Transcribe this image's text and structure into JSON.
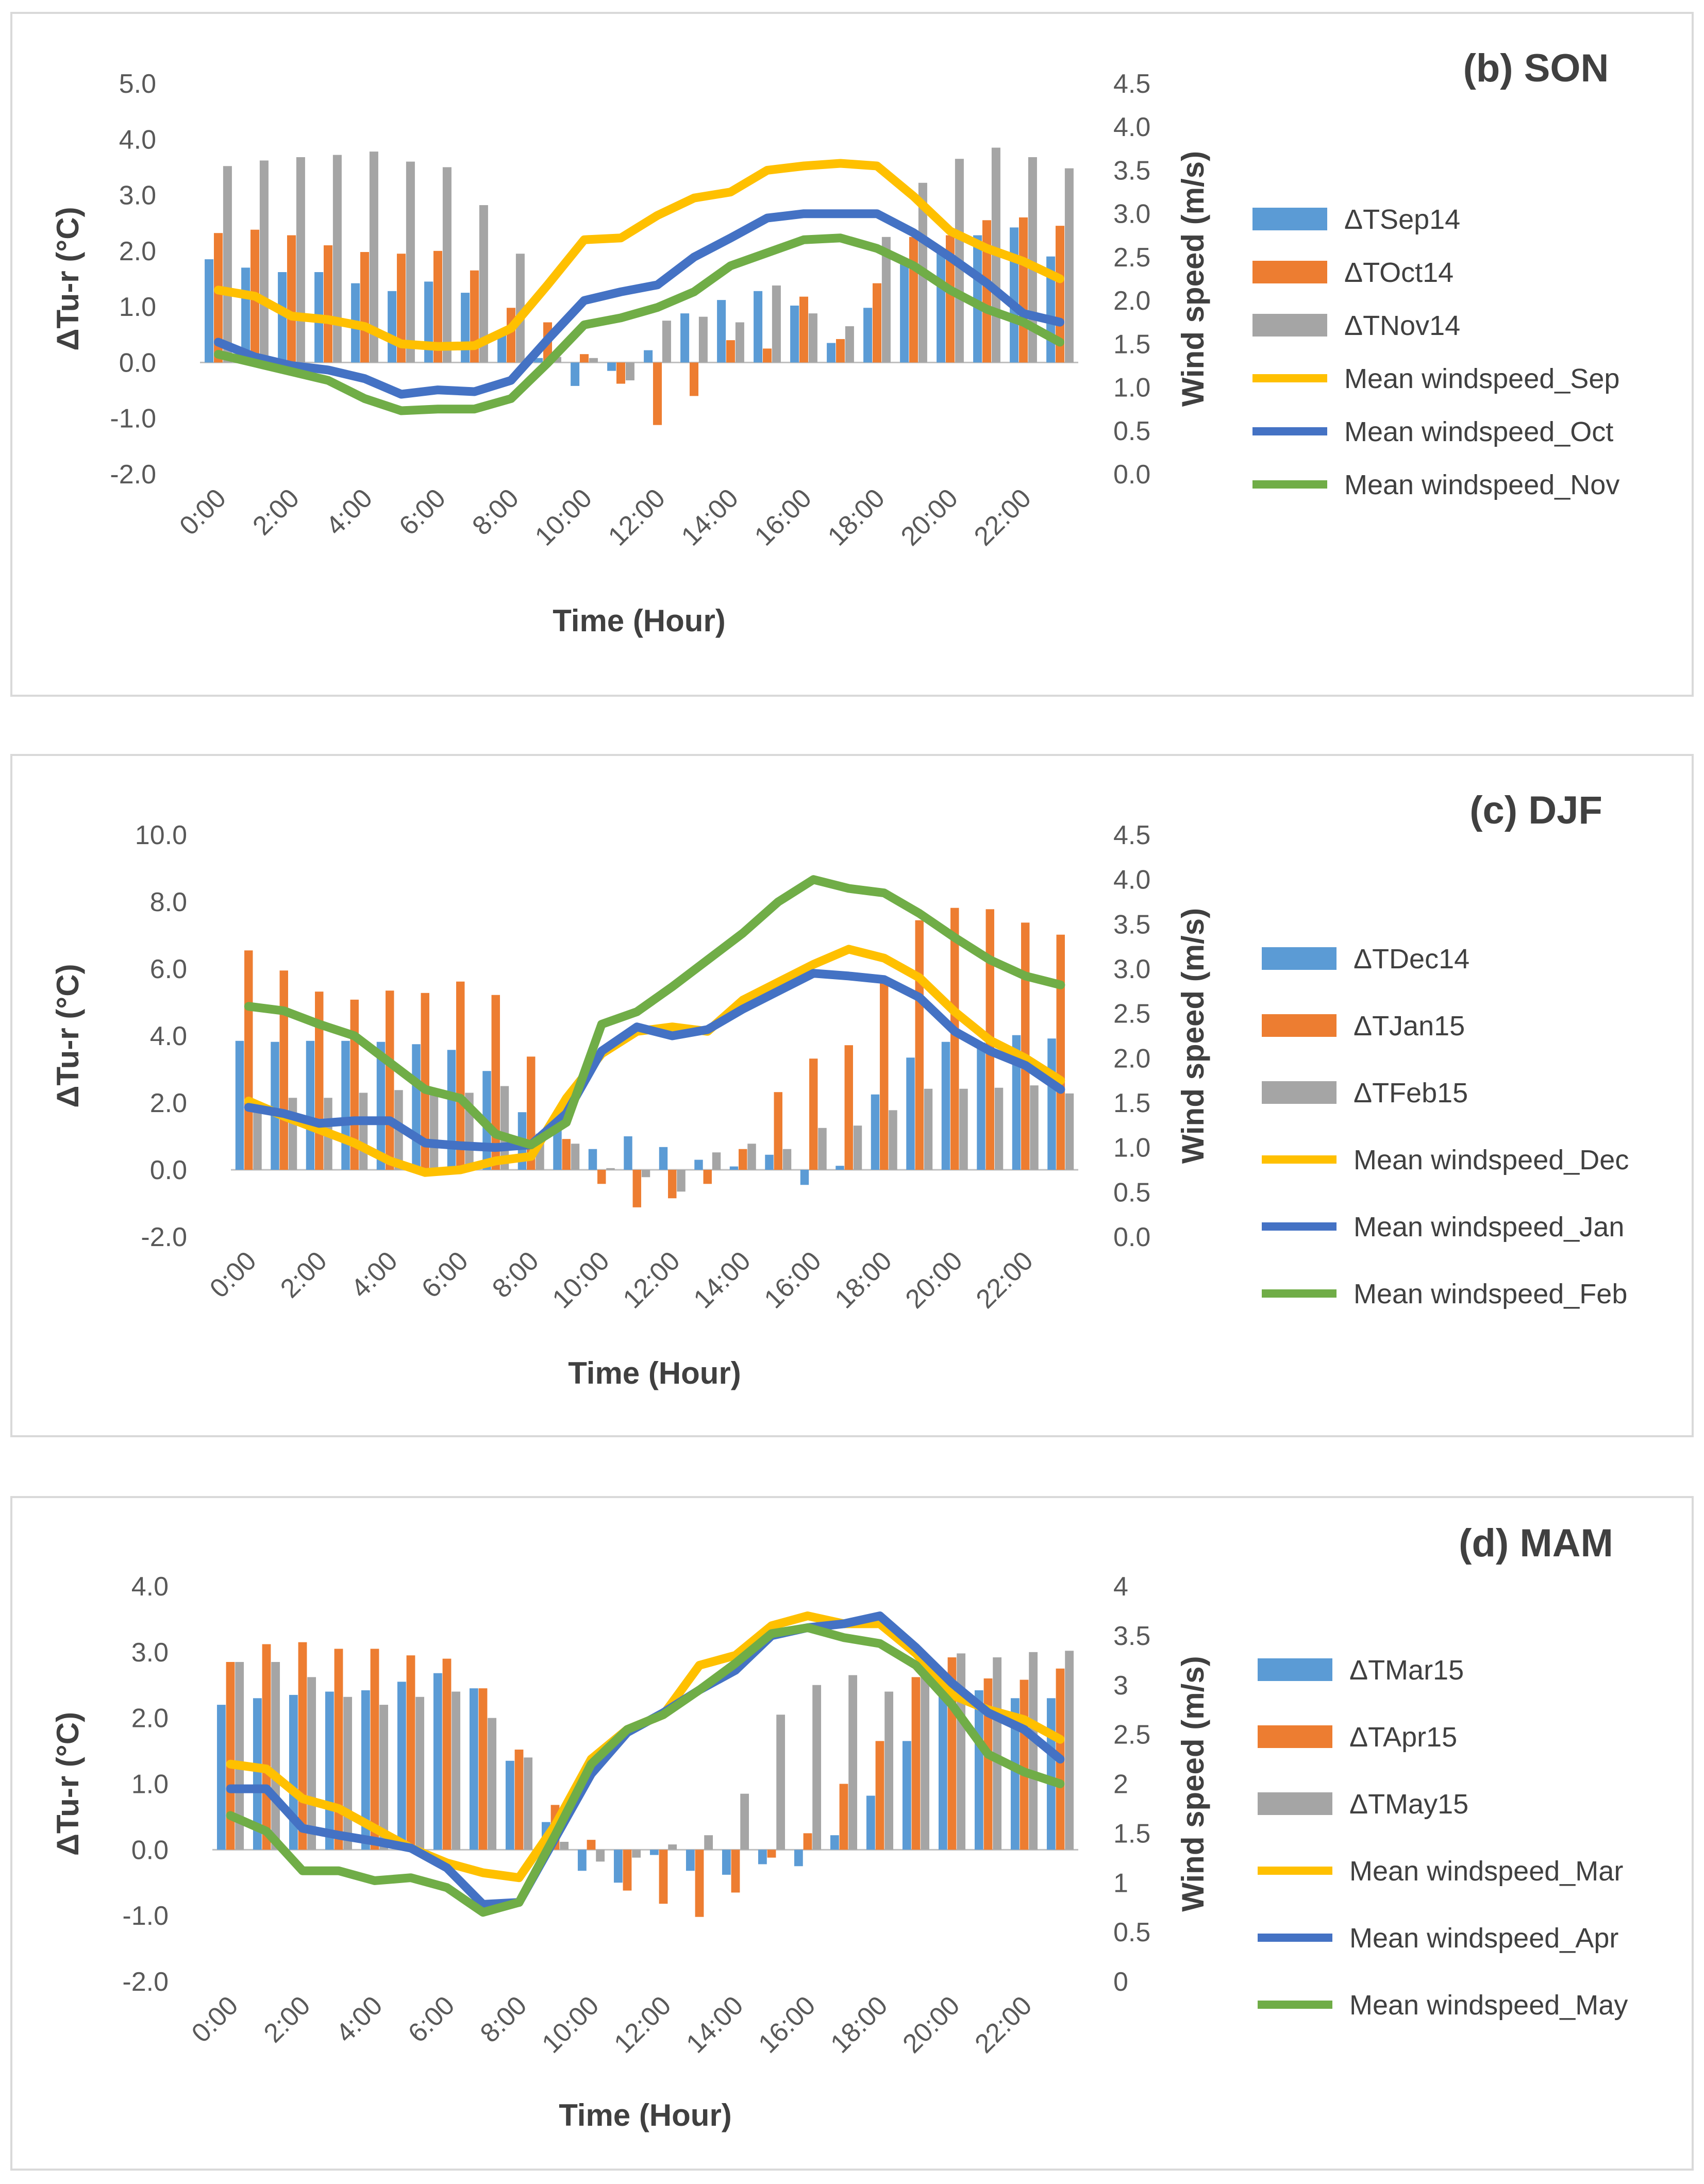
{
  "chart_data": [
    {
      "type": "bar",
      "title": "(b) SON",
      "xlabel": "Time (Hour)",
      "ylabel": "ΔTu-r (°C)",
      "y2label": "Wind speed (m/s)",
      "ylim": [
        -2.0,
        5.0
      ],
      "y2lim": [
        0.0,
        4.5
      ],
      "yticks": [
        "5.0",
        "4.0",
        "3.0",
        "2.0",
        "1.0",
        "0.0",
        "-1.0",
        "-2.0"
      ],
      "y2ticks": [
        "4.5",
        "4.0",
        "3.5",
        "3.0",
        "2.5",
        "2.0",
        "1.5",
        "1.0",
        "0.5",
        "0.0"
      ],
      "x": [
        "0:00",
        "1:00",
        "2:00",
        "3:00",
        "4:00",
        "5:00",
        "6:00",
        "7:00",
        "8:00",
        "9:00",
        "10:00",
        "11:00",
        "12:00",
        "13:00",
        "14:00",
        "15:00",
        "16:00",
        "17:00",
        "18:00",
        "19:00",
        "20:00",
        "21:00",
        "22:00",
        "23:00"
      ],
      "xtick_labels": [
        "0:00",
        "2:00",
        "4:00",
        "6:00",
        "8:00",
        "10:00",
        "12:00",
        "14:00",
        "16:00",
        "18:00",
        "20:00",
        "22:00"
      ],
      "legend_position": "right",
      "bar_series": [
        {
          "name": "ΔTSep14",
          "color": "#5b9bd5",
          "values": [
            1.85,
            1.7,
            1.62,
            1.62,
            1.42,
            1.28,
            1.45,
            1.25,
            0.58,
            0.08,
            -0.42,
            -0.15,
            0.22,
            0.88,
            1.12,
            1.28,
            1.02,
            0.35,
            0.98,
            1.78,
            1.98,
            2.28,
            2.42,
            1.9
          ]
        },
        {
          "name": "ΔTOct14",
          "color": "#ed7d31",
          "values": [
            2.32,
            2.38,
            2.28,
            2.1,
            1.98,
            1.95,
            2.0,
            1.65,
            0.98,
            0.72,
            0.15,
            -0.38,
            -1.12,
            -0.6,
            0.4,
            0.25,
            1.18,
            0.42,
            1.42,
            2.25,
            2.28,
            2.55,
            2.6,
            2.45
          ]
        },
        {
          "name": "ΔTNov14",
          "color": "#a5a5a5",
          "values": [
            3.52,
            3.62,
            3.68,
            3.72,
            3.78,
            3.6,
            3.5,
            2.82,
            1.95,
            0.1,
            0.08,
            -0.32,
            0.75,
            0.82,
            0.72,
            1.38,
            0.88,
            0.65,
            2.25,
            3.22,
            3.65,
            3.85,
            3.68,
            3.48
          ]
        }
      ],
      "line_series": [
        {
          "name": "Mean windspeed_Sep",
          "color": "#ffc000",
          "values": [
            2.12,
            2.05,
            1.82,
            1.78,
            1.7,
            1.5,
            1.47,
            1.48,
            1.68,
            2.18,
            2.7,
            2.72,
            2.98,
            3.18,
            3.25,
            3.5,
            3.55,
            3.58,
            3.55,
            3.2,
            2.8,
            2.6,
            2.45,
            2.25
          ]
        },
        {
          "name": "Mean windspeed_Oct",
          "color": "#4472c4",
          "values": [
            1.52,
            1.35,
            1.25,
            1.2,
            1.1,
            0.92,
            0.97,
            0.95,
            1.08,
            1.55,
            2.0,
            2.1,
            2.18,
            2.5,
            2.72,
            2.95,
            3.0,
            3.0,
            3.0,
            2.78,
            2.5,
            2.2,
            1.85,
            1.75
          ]
        },
        {
          "name": "Mean windspeed_Nov",
          "color": "#70ad47",
          "values": [
            1.38,
            1.28,
            1.18,
            1.08,
            0.87,
            0.73,
            0.75,
            0.75,
            0.87,
            1.28,
            1.72,
            1.8,
            1.92,
            2.1,
            2.4,
            2.55,
            2.7,
            2.72,
            2.6,
            2.4,
            2.12,
            1.9,
            1.75,
            1.52
          ]
        }
      ]
    },
    {
      "type": "bar",
      "title": "(c) DJF",
      "xlabel": "Time (Hour)",
      "ylabel": "ΔTu-r (°C)",
      "y2label": "Wind speed (m/s)",
      "ylim": [
        -2.0,
        10.0
      ],
      "y2lim": [
        0.0,
        4.5
      ],
      "yticks": [
        "10.0",
        "8.0",
        "6.0",
        "4.0",
        "2.0",
        "0.0",
        "-2.0"
      ],
      "y2ticks": [
        "4.5",
        "4.0",
        "3.5",
        "3.0",
        "2.5",
        "2.0",
        "1.5",
        "1.0",
        "0.5",
        "0.0"
      ],
      "x": [
        "0:00",
        "1:00",
        "2:00",
        "3:00",
        "4:00",
        "5:00",
        "6:00",
        "7:00",
        "8:00",
        "9:00",
        "10:00",
        "11:00",
        "12:00",
        "13:00",
        "14:00",
        "15:00",
        "16:00",
        "17:00",
        "18:00",
        "19:00",
        "20:00",
        "21:00",
        "22:00",
        "23:00"
      ],
      "xtick_labels": [
        "0:00",
        "2:00",
        "4:00",
        "6:00",
        "8:00",
        "10:00",
        "12:00",
        "14:00",
        "16:00",
        "18:00",
        "20:00",
        "22:00"
      ],
      "legend_position": "right",
      "bar_series": [
        {
          "name": "ΔTDec14",
          "color": "#5b9bd5",
          "values": [
            3.85,
            3.82,
            3.85,
            3.85,
            3.82,
            3.75,
            3.58,
            2.95,
            1.72,
            1.28,
            0.62,
            1.0,
            0.68,
            0.3,
            0.1,
            0.45,
            -0.45,
            0.12,
            2.25,
            3.35,
            3.82,
            3.8,
            4.02,
            3.92
          ]
        },
        {
          "name": "ΔTJan15",
          "color": "#ed7d31",
          "values": [
            6.55,
            5.95,
            5.32,
            5.08,
            5.35,
            5.28,
            5.62,
            5.22,
            3.38,
            0.92,
            -0.42,
            -1.12,
            -0.85,
            -0.42,
            0.62,
            2.32,
            3.32,
            3.72,
            5.62,
            7.45,
            7.82,
            7.78,
            7.38,
            7.02
          ]
        },
        {
          "name": "ΔTFeb15",
          "color": "#a5a5a5",
          "values": [
            2.02,
            2.15,
            2.15,
            2.3,
            2.38,
            2.25,
            2.3,
            2.5,
            1.08,
            0.78,
            0.05,
            -0.22,
            -0.65,
            0.52,
            0.78,
            0.62,
            1.25,
            1.32,
            1.78,
            2.42,
            2.42,
            2.45,
            2.52,
            2.28
          ]
        }
      ],
      "line_series": [
        {
          "name": "Mean windspeed_Dec",
          "color": "#ffc000",
          "values": [
            1.52,
            1.35,
            1.2,
            1.05,
            0.85,
            0.72,
            0.75,
            0.85,
            0.9,
            1.55,
            2.05,
            2.3,
            2.35,
            2.3,
            2.65,
            2.85,
            3.05,
            3.22,
            3.12,
            2.9,
            2.52,
            2.2,
            2.0,
            1.75
          ]
        },
        {
          "name": "Mean windspeed_Jan",
          "color": "#4472c4",
          "values": [
            1.45,
            1.38,
            1.27,
            1.3,
            1.3,
            1.05,
            1.02,
            1.0,
            1.03,
            1.38,
            2.08,
            2.35,
            2.25,
            2.32,
            2.55,
            2.75,
            2.95,
            2.92,
            2.88,
            2.68,
            2.3,
            2.08,
            1.92,
            1.65
          ]
        },
        {
          "name": "Mean windspeed_Feb",
          "color": "#70ad47",
          "values": [
            2.58,
            2.53,
            2.38,
            2.25,
            1.95,
            1.65,
            1.55,
            1.15,
            1.03,
            1.28,
            2.38,
            2.52,
            2.8,
            3.1,
            3.4,
            3.75,
            4.0,
            3.9,
            3.85,
            3.62,
            3.35,
            3.1,
            2.92,
            2.82
          ]
        }
      ]
    },
    {
      "type": "bar",
      "title": "(d) MAM",
      "xlabel": "Time (Hour)",
      "ylabel": "ΔTu-r (°C)",
      "y2label": "Wind speed (m/s)",
      "ylim": [
        -2.0,
        4.0
      ],
      "y2lim": [
        0,
        4
      ],
      "yticks": [
        "4.0",
        "3.0",
        "2.0",
        "1.0",
        "0.0",
        "-1.0",
        "-2.0"
      ],
      "y2ticks": [
        "4",
        "3.5",
        "3",
        "2.5",
        "2",
        "1.5",
        "1",
        "0.5",
        "0"
      ],
      "x": [
        "0:00",
        "1:00",
        "2:00",
        "3:00",
        "4:00",
        "5:00",
        "6:00",
        "7:00",
        "8:00",
        "9:00",
        "10:00",
        "11:00",
        "12:00",
        "13:00",
        "14:00",
        "15:00",
        "16:00",
        "17:00",
        "18:00",
        "19:00",
        "20:00",
        "21:00",
        "22:00",
        "23:00"
      ],
      "xtick_labels": [
        "0:00",
        "2:00",
        "4:00",
        "6:00",
        "8:00",
        "10:00",
        "12:00",
        "14:00",
        "16:00",
        "18:00",
        "20:00",
        "22:00"
      ],
      "legend_position": "right",
      "bar_series": [
        {
          "name": "ΔTMar15",
          "color": "#5b9bd5",
          "values": [
            2.2,
            2.3,
            2.35,
            2.4,
            2.42,
            2.55,
            2.68,
            2.45,
            1.35,
            0.42,
            -0.32,
            -0.5,
            -0.08,
            -0.32,
            -0.38,
            -0.22,
            -0.25,
            0.22,
            0.82,
            1.65,
            2.42,
            2.42,
            2.3,
            2.3
          ]
        },
        {
          "name": "ΔTApr15",
          "color": "#ed7d31",
          "values": [
            2.85,
            3.12,
            3.15,
            3.05,
            3.05,
            2.95,
            2.9,
            2.45,
            1.52,
            0.68,
            0.15,
            -0.62,
            -0.82,
            -1.02,
            -0.65,
            -0.12,
            0.25,
            1.0,
            1.65,
            2.62,
            2.92,
            2.6,
            2.58,
            2.75
          ]
        },
        {
          "name": "ΔTMay15",
          "color": "#a5a5a5",
          "values": [
            2.85,
            2.85,
            2.62,
            2.32,
            2.2,
            2.32,
            2.4,
            2.0,
            1.4,
            0.12,
            -0.18,
            -0.12,
            0.08,
            0.22,
            0.85,
            2.05,
            2.5,
            2.65,
            2.4,
            2.95,
            2.98,
            2.92,
            3.0,
            3.02
          ]
        }
      ],
      "line_series": [
        {
          "name": "Mean windspeed_Mar",
          "color": "#ffc000",
          "values": [
            2.2,
            2.15,
            1.85,
            1.75,
            1.55,
            1.35,
            1.2,
            1.1,
            1.05,
            1.58,
            2.25,
            2.55,
            2.7,
            3.2,
            3.3,
            3.6,
            3.7,
            3.62,
            3.62,
            3.32,
            2.9,
            2.75,
            2.65,
            2.45
          ]
        },
        {
          "name": "Mean windspeed_Apr",
          "color": "#4472c4",
          "values": [
            1.95,
            1.95,
            1.55,
            1.48,
            1.42,
            1.35,
            1.15,
            0.78,
            0.8,
            1.45,
            2.1,
            2.52,
            2.72,
            2.95,
            3.15,
            3.5,
            3.58,
            3.62,
            3.7,
            3.38,
            3.02,
            2.72,
            2.55,
            2.25
          ]
        },
        {
          "name": "Mean windspeed_May",
          "color": "#70ad47",
          "values": [
            1.68,
            1.52,
            1.12,
            1.12,
            1.02,
            1.05,
            0.95,
            0.7,
            0.8,
            1.48,
            2.2,
            2.55,
            2.7,
            2.95,
            3.22,
            3.52,
            3.58,
            3.48,
            3.42,
            3.2,
            2.8,
            2.3,
            2.12,
            2.0
          ]
        }
      ]
    }
  ]
}
